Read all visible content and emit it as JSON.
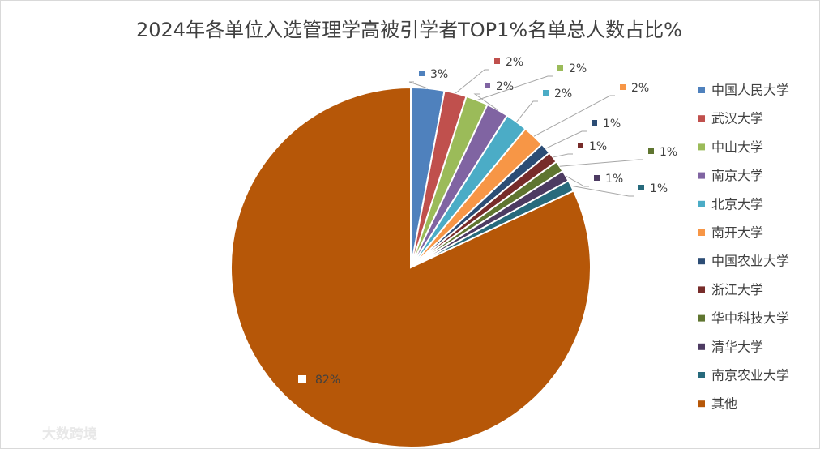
{
  "chart_data": {
    "type": "pie",
    "title": "2024年各单位入选管理学高被引学者TOP1%名单总人数占比%",
    "categories": [
      "中国人民大学",
      "武汉大学",
      "中山大学",
      "南京大学",
      "北京大学",
      "南开大学",
      "中国农业大学",
      "浙江大学",
      "华中科技大学",
      "清华大学",
      "南京农业大学",
      "其他"
    ],
    "values": [
      3,
      2,
      2,
      2,
      2,
      2,
      1,
      1,
      1,
      1,
      1,
      82
    ],
    "value_labels": [
      "3%",
      "2%",
      "2%",
      "2%",
      "2%",
      "2%",
      "1%",
      "1%",
      "1%",
      "1%",
      "1%",
      "82%"
    ],
    "colors": [
      "#4f81bd",
      "#c0504d",
      "#9bbb59",
      "#8064a2",
      "#4bacc6",
      "#f79646",
      "#2c4d75",
      "#772c2a",
      "#5f7530",
      "#4d3b62",
      "#276a7c",
      "#b65708"
    ],
    "legend": "right",
    "watermark": "大数跨境"
  }
}
